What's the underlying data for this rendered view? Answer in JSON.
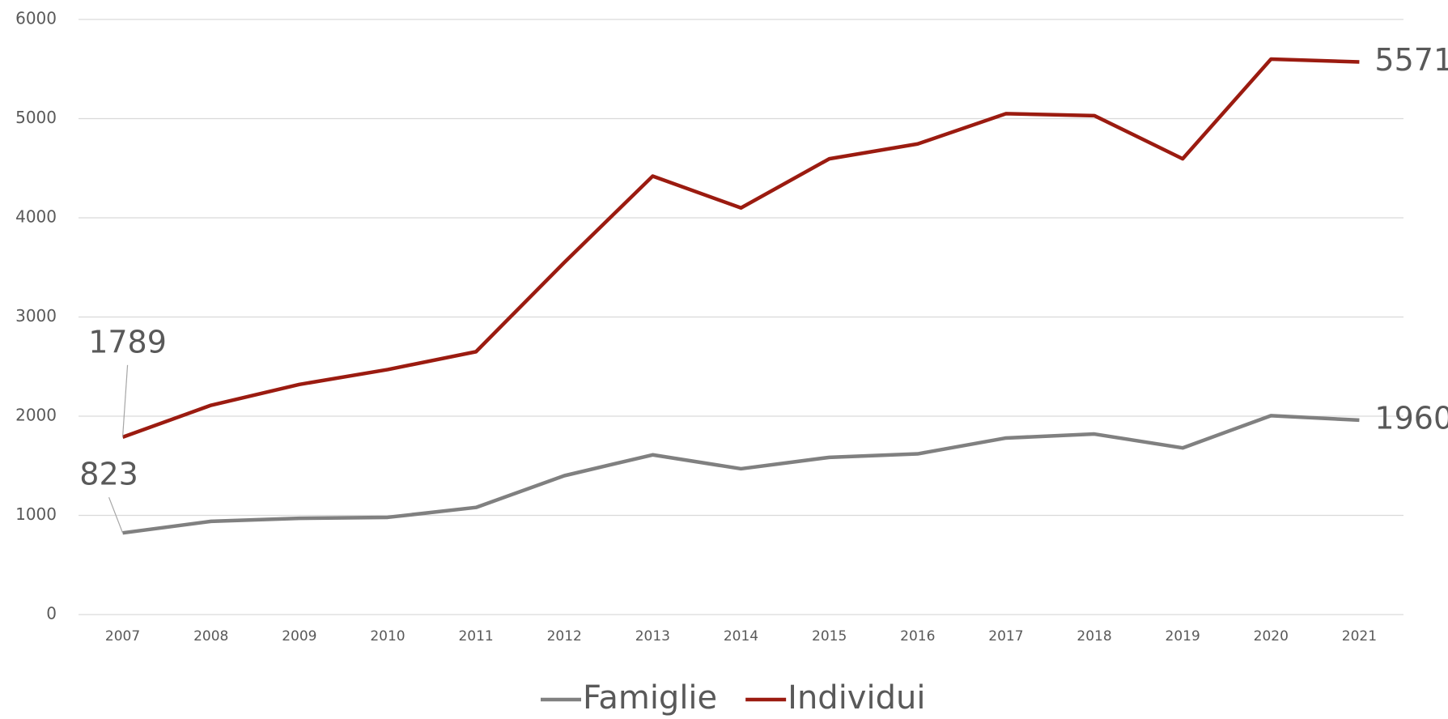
{
  "chart_data": {
    "type": "line",
    "categories": [
      "2007",
      "2008",
      "2009",
      "2010",
      "2011",
      "2012",
      "2013",
      "2014",
      "2015",
      "2016",
      "2017",
      "2018",
      "2019",
      "2020",
      "2021"
    ],
    "series": [
      {
        "name": "Famiglie",
        "color": "#808080",
        "values": [
          823,
          940,
          970,
          980,
          1080,
          1400,
          1610,
          1470,
          1585,
          1620,
          1780,
          1820,
          1680,
          2005,
          1960
        ]
      },
      {
        "name": "Individui",
        "color": "#9b1b10",
        "values": [
          1789,
          2110,
          2320,
          2470,
          2650,
          3550,
          4420,
          4100,
          4595,
          4745,
          5050,
          5030,
          4595,
          5600,
          5571
        ]
      }
    ],
    "ylim": [
      0,
      6000
    ],
    "yticks": [
      0,
      1000,
      2000,
      3000,
      4000,
      5000,
      6000
    ],
    "grid": true,
    "legend": "bottom"
  }
}
